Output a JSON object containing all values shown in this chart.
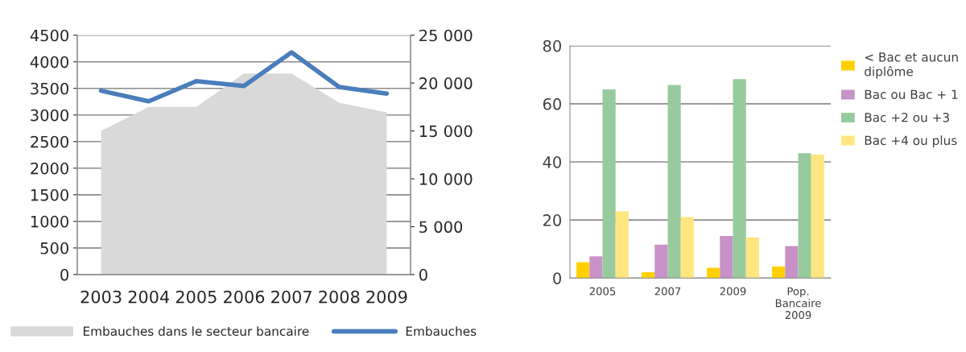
{
  "chart_data": [
    {
      "type": "area",
      "categories": [
        "2003",
        "2004",
        "2005",
        "2006",
        "2007",
        "2008",
        "2009"
      ],
      "series": [
        {
          "name": "Embauches dans le secteur bancaire",
          "color": "#d9d9d9",
          "values": [
            2700,
            3150,
            3150,
            3780,
            3780,
            3230,
            3050
          ]
        },
        {
          "name": "Embauches",
          "type": "line",
          "axis": "y2",
          "color": "#4a7ebb",
          "values": [
            19200,
            18100,
            20200,
            19700,
            23200,
            19600,
            18900
          ]
        }
      ],
      "ylim": [
        0,
        4500
      ],
      "yticks": [
        0,
        500,
        1000,
        1500,
        2000,
        2500,
        3000,
        3500,
        4000,
        4500
      ],
      "y2lim": [
        0,
        25000
      ],
      "y2ticks": [
        {
          "value": 0,
          "label": "0"
        },
        {
          "value": 5000,
          "label": "5 000"
        },
        {
          "value": 10000,
          "label": "10 000"
        },
        {
          "value": 15000,
          "label": "15 000"
        },
        {
          "value": 20000,
          "label": "20 000"
        },
        {
          "value": 25000,
          "label": "25 000"
        }
      ],
      "grid": "y",
      "legend": "bottom",
      "marker": "none"
    },
    {
      "type": "bar",
      "categories": [
        "2005",
        "2007",
        "2009",
        "Pop.\nBancaire\n2009"
      ],
      "series": [
        {
          "name": "< Bac et aucun\ndiplôme",
          "color": "#ffd000",
          "values": [
            5.5,
            2,
            3.5,
            4
          ]
        },
        {
          "name": "Bac ou Bac + 1",
          "color": "#c891c8",
          "values": [
            7.5,
            11.5,
            14.5,
            11
          ]
        },
        {
          "name": "Bac +2 ou +3",
          "color": "#97cb9d",
          "values": [
            65,
            66.5,
            68.5,
            43
          ]
        },
        {
          "name": "Bac +4 ou plus",
          "color": "#ffe680",
          "values": [
            23,
            21,
            14,
            42.5
          ]
        }
      ],
      "ylim": [
        0,
        80
      ],
      "yticks": [
        0,
        20,
        40,
        60,
        80
      ],
      "grid": "y",
      "legend": "right"
    }
  ]
}
